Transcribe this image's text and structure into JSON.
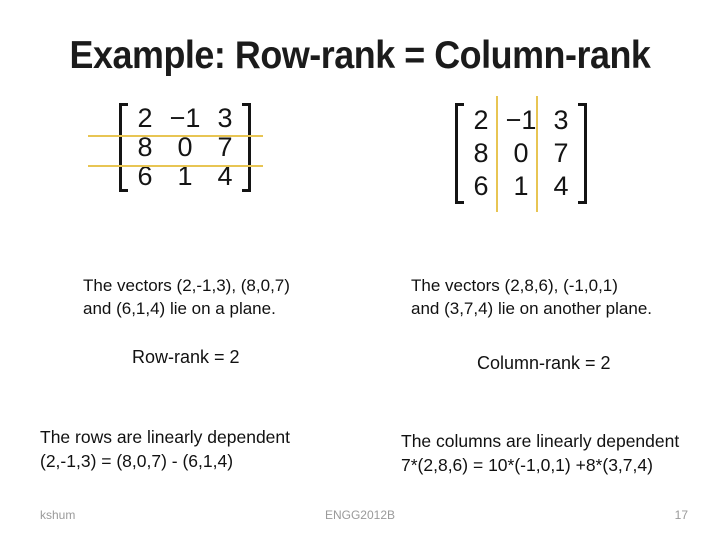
{
  "slide": {
    "title": "Example: Row-rank = Column-rank",
    "footer": {
      "author": "kshum",
      "course": "ENGG2012B",
      "page_number": "17"
    }
  },
  "matrices": {
    "row_view": {
      "description": "3x3 matrix partitioned by rows with gold horizontal separator lines",
      "rows": [
        [
          "2",
          "−1",
          "3"
        ],
        [
          "8",
          "0",
          "7"
        ],
        [
          "6",
          "1",
          "4"
        ]
      ]
    },
    "column_view": {
      "description": "3x3 matrix partitioned by columns with gold vertical separator lines",
      "rows": [
        [
          "2",
          "−1",
          "3"
        ],
        [
          "8",
          "0",
          "7"
        ],
        [
          "6",
          "1",
          "4"
        ]
      ]
    }
  },
  "annotations": {
    "left": {
      "vectors_line1": "The vectors (2,-1,3), (8,0,7)",
      "vectors_line2": "and (6,1,4) lie on a plane.",
      "rank": "Row-rank = 2",
      "dependent_line1": "The rows are linearly dependent",
      "dependent_line2": "(2,-1,3) = (8,0,7) - (6,1,4)"
    },
    "right": {
      "vectors_line1": "The vectors (2,8,6), (-1,0,1)",
      "vectors_line2": "and (3,7,4) lie on another plane.",
      "rank": "Column-rank = 2",
      "dependent_line1": "The columns are linearly dependent",
      "dependent_line2": "7*(2,8,6) = 10*(-1,0,1) +8*(3,7,4)"
    }
  },
  "colors": {
    "separator_line": "#e8c553",
    "title_text": "#1b1b1b",
    "body_text": "#111111",
    "matrix_text": "#141414",
    "footer_text": "#9a9a9a",
    "background": "#ffffff"
  }
}
